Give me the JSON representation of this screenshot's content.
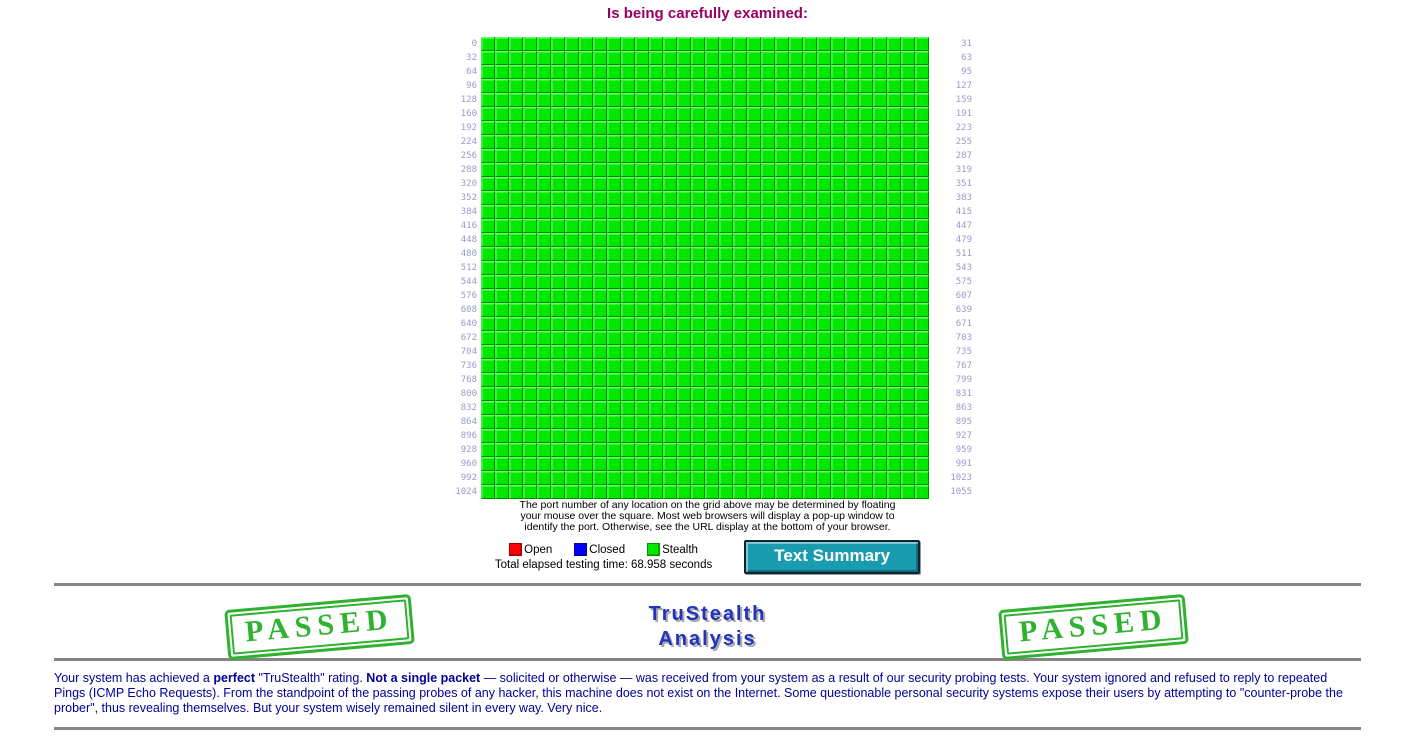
{
  "colors": {
    "title_color": "#990066",
    "label_color": "#9999cc",
    "cell_color": "#00e800",
    "button_bg": "#1a9cb0",
    "stamp_color": "#2fb22f",
    "trustealth_color": "#2233bb",
    "text_color": "#000099"
  },
  "title": "Is being carefully examined:",
  "port_grid": {
    "columns": 32,
    "rows": 33,
    "port_range": "0-1055",
    "all_cells_status": "Stealth",
    "stealth_color": "#00e800",
    "left_labels": [
      "0",
      "32",
      "64",
      "96",
      "128",
      "160",
      "192",
      "224",
      "256",
      "288",
      "320",
      "352",
      "384",
      "416",
      "448",
      "480",
      "512",
      "544",
      "576",
      "608",
      "640",
      "672",
      "704",
      "736",
      "768",
      "800",
      "832",
      "864",
      "896",
      "928",
      "960",
      "992",
      "1024"
    ],
    "right_labels": [
      "31",
      "63",
      "95",
      "127",
      "159",
      "191",
      "223",
      "255",
      "287",
      "319",
      "351",
      "383",
      "415",
      "447",
      "479",
      "511",
      "543",
      "575",
      "607",
      "639",
      "671",
      "703",
      "735",
      "767",
      "799",
      "831",
      "863",
      "895",
      "927",
      "959",
      "991",
      "1023",
      "1055"
    ]
  },
  "grid_note_lines": [
    "The port number of any location on the grid above may be determined by floating",
    "your mouse over the square. Most web browsers will display a pop-up window to",
    "identify the port. Otherwise, see the URL display at the bottom of your browser."
  ],
  "legend": {
    "items": [
      {
        "label": "Open",
        "color": "#ff0000"
      },
      {
        "label": "Closed",
        "color": "#0000ff"
      },
      {
        "label": "Stealth",
        "color": "#00e800"
      }
    ],
    "elapsed": "Total elapsed testing time: 68.958 seconds"
  },
  "button": {
    "label": "Text Summary"
  },
  "stamps": {
    "left": "PASSED",
    "right": "PASSED"
  },
  "trustealth": {
    "line1": "TruStealth",
    "line2": "Analysis"
  },
  "paragraph": {
    "part1": "Your system has achieved a ",
    "bold1": "perfect",
    "part2": " \"TruStealth\" rating. ",
    "bold2": "Not a single packet",
    "part3": " — solicited or otherwise — was received from your system as a result of our security probing tests. Your system ignored and refused to reply to repeated Pings (ICMP Echo Requests). From the standpoint of the passing probes of any hacker, this machine does not exist on the Internet. Some questionable personal security systems expose their users by attempting to \"counter-probe the prober\", thus revealing themselves. But your system wisely remained silent in every way. Very nice."
  }
}
